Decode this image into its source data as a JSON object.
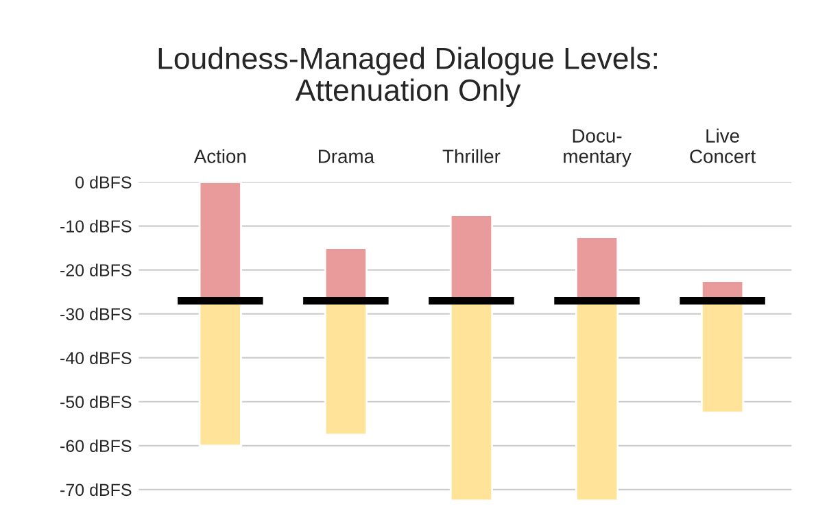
{
  "chart_data": {
    "type": "bar",
    "title": "Loudness-Managed Dialogue Levels:\nAttenuation Only",
    "categories": [
      "Action",
      "Drama",
      "Thriller",
      "Docu-\nmentary",
      "Live\nConcert"
    ],
    "series": [
      {
        "color": "#e99a9a",
        "base": [
          -27,
          -27,
          -27,
          -27,
          -27
        ],
        "values": [
          27,
          12,
          19.5,
          14.5,
          4.5
        ]
      },
      {
        "color": "#fee398",
        "base": [
          -60,
          -57.5,
          -72.5,
          -72.5,
          -52.5
        ],
        "values": [
          33,
          30.5,
          45.5,
          45.5,
          25.5
        ]
      }
    ],
    "ref_lines": [
      {
        "axis": "y",
        "value": -27,
        "color": "#000000"
      }
    ],
    "ylim": [
      -73,
      0
    ],
    "yticks": [
      {
        "value": 0,
        "label": "0 dBFS"
      },
      {
        "value": -10,
        "label": "-10 dBFS"
      },
      {
        "value": -20,
        "label": "-20 dBFS"
      },
      {
        "value": -30,
        "label": "-30 dBFS"
      },
      {
        "value": -40,
        "label": "-40 dBFS"
      },
      {
        "value": -50,
        "label": "-50 dBFS"
      },
      {
        "value": -60,
        "label": "-60 dBFS"
      },
      {
        "value": -70,
        "label": "-70 dBFS"
      }
    ],
    "grid": "y"
  }
}
